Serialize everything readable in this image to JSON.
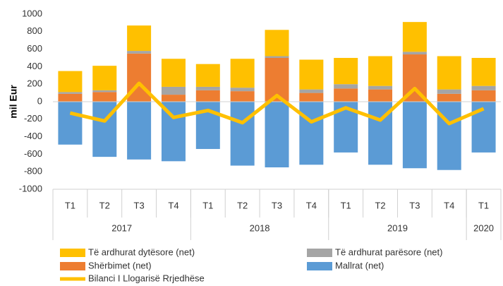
{
  "chart_data": {
    "type": "stacked_bar_line",
    "y_label": "mil Eur",
    "categories": [
      "T1",
      "T2",
      "T3",
      "T4",
      "T1",
      "T2",
      "T3",
      "T4",
      "T1",
      "T2",
      "T3",
      "T4",
      "T1"
    ],
    "groups": [
      {
        "label": "2017",
        "size": 4
      },
      {
        "label": "2018",
        "size": 4
      },
      {
        "label": "2019",
        "size": 4
      },
      {
        "label": "2020",
        "size": 1
      }
    ],
    "series": [
      {
        "name": "Mallrat (net)",
        "color": "#5b9bd5",
        "kind": "bar",
        "values": [
          -490,
          -630,
          -660,
          -680,
          -540,
          -730,
          -750,
          -720,
          -580,
          -720,
          -760,
          -780,
          -580
        ]
      },
      {
        "name": "Shërbimet (net)",
        "color": "#ed7d31",
        "kind": "bar",
        "values": [
          90,
          110,
          550,
          80,
          130,
          120,
          500,
          100,
          150,
          140,
          540,
          90,
          130
        ]
      },
      {
        "name": "Të ardhurat parësore (net)",
        "color": "#a5a5a5",
        "kind": "bar",
        "values": [
          20,
          20,
          30,
          90,
          40,
          40,
          20,
          40,
          50,
          40,
          30,
          50,
          50
        ]
      },
      {
        "name": "Të ardhurat dytësore (net)",
        "color": "#ffc000",
        "kind": "bar",
        "values": [
          240,
          280,
          290,
          320,
          260,
          330,
          300,
          340,
          300,
          340,
          340,
          380,
          320
        ]
      },
      {
        "name": "Bilanci I Llogarisë Rrjedhëse",
        "color": "#ffc000",
        "kind": "line",
        "values": [
          -130,
          -220,
          210,
          -180,
          -100,
          -240,
          70,
          -230,
          -70,
          -210,
          150,
          -250,
          -80
        ]
      }
    ],
    "ylim": [
      -1000,
      1000
    ],
    "yticks": [
      -1000,
      -800,
      -600,
      -400,
      -200,
      0,
      200,
      400,
      600,
      800,
      1000
    ],
    "grid": false
  }
}
